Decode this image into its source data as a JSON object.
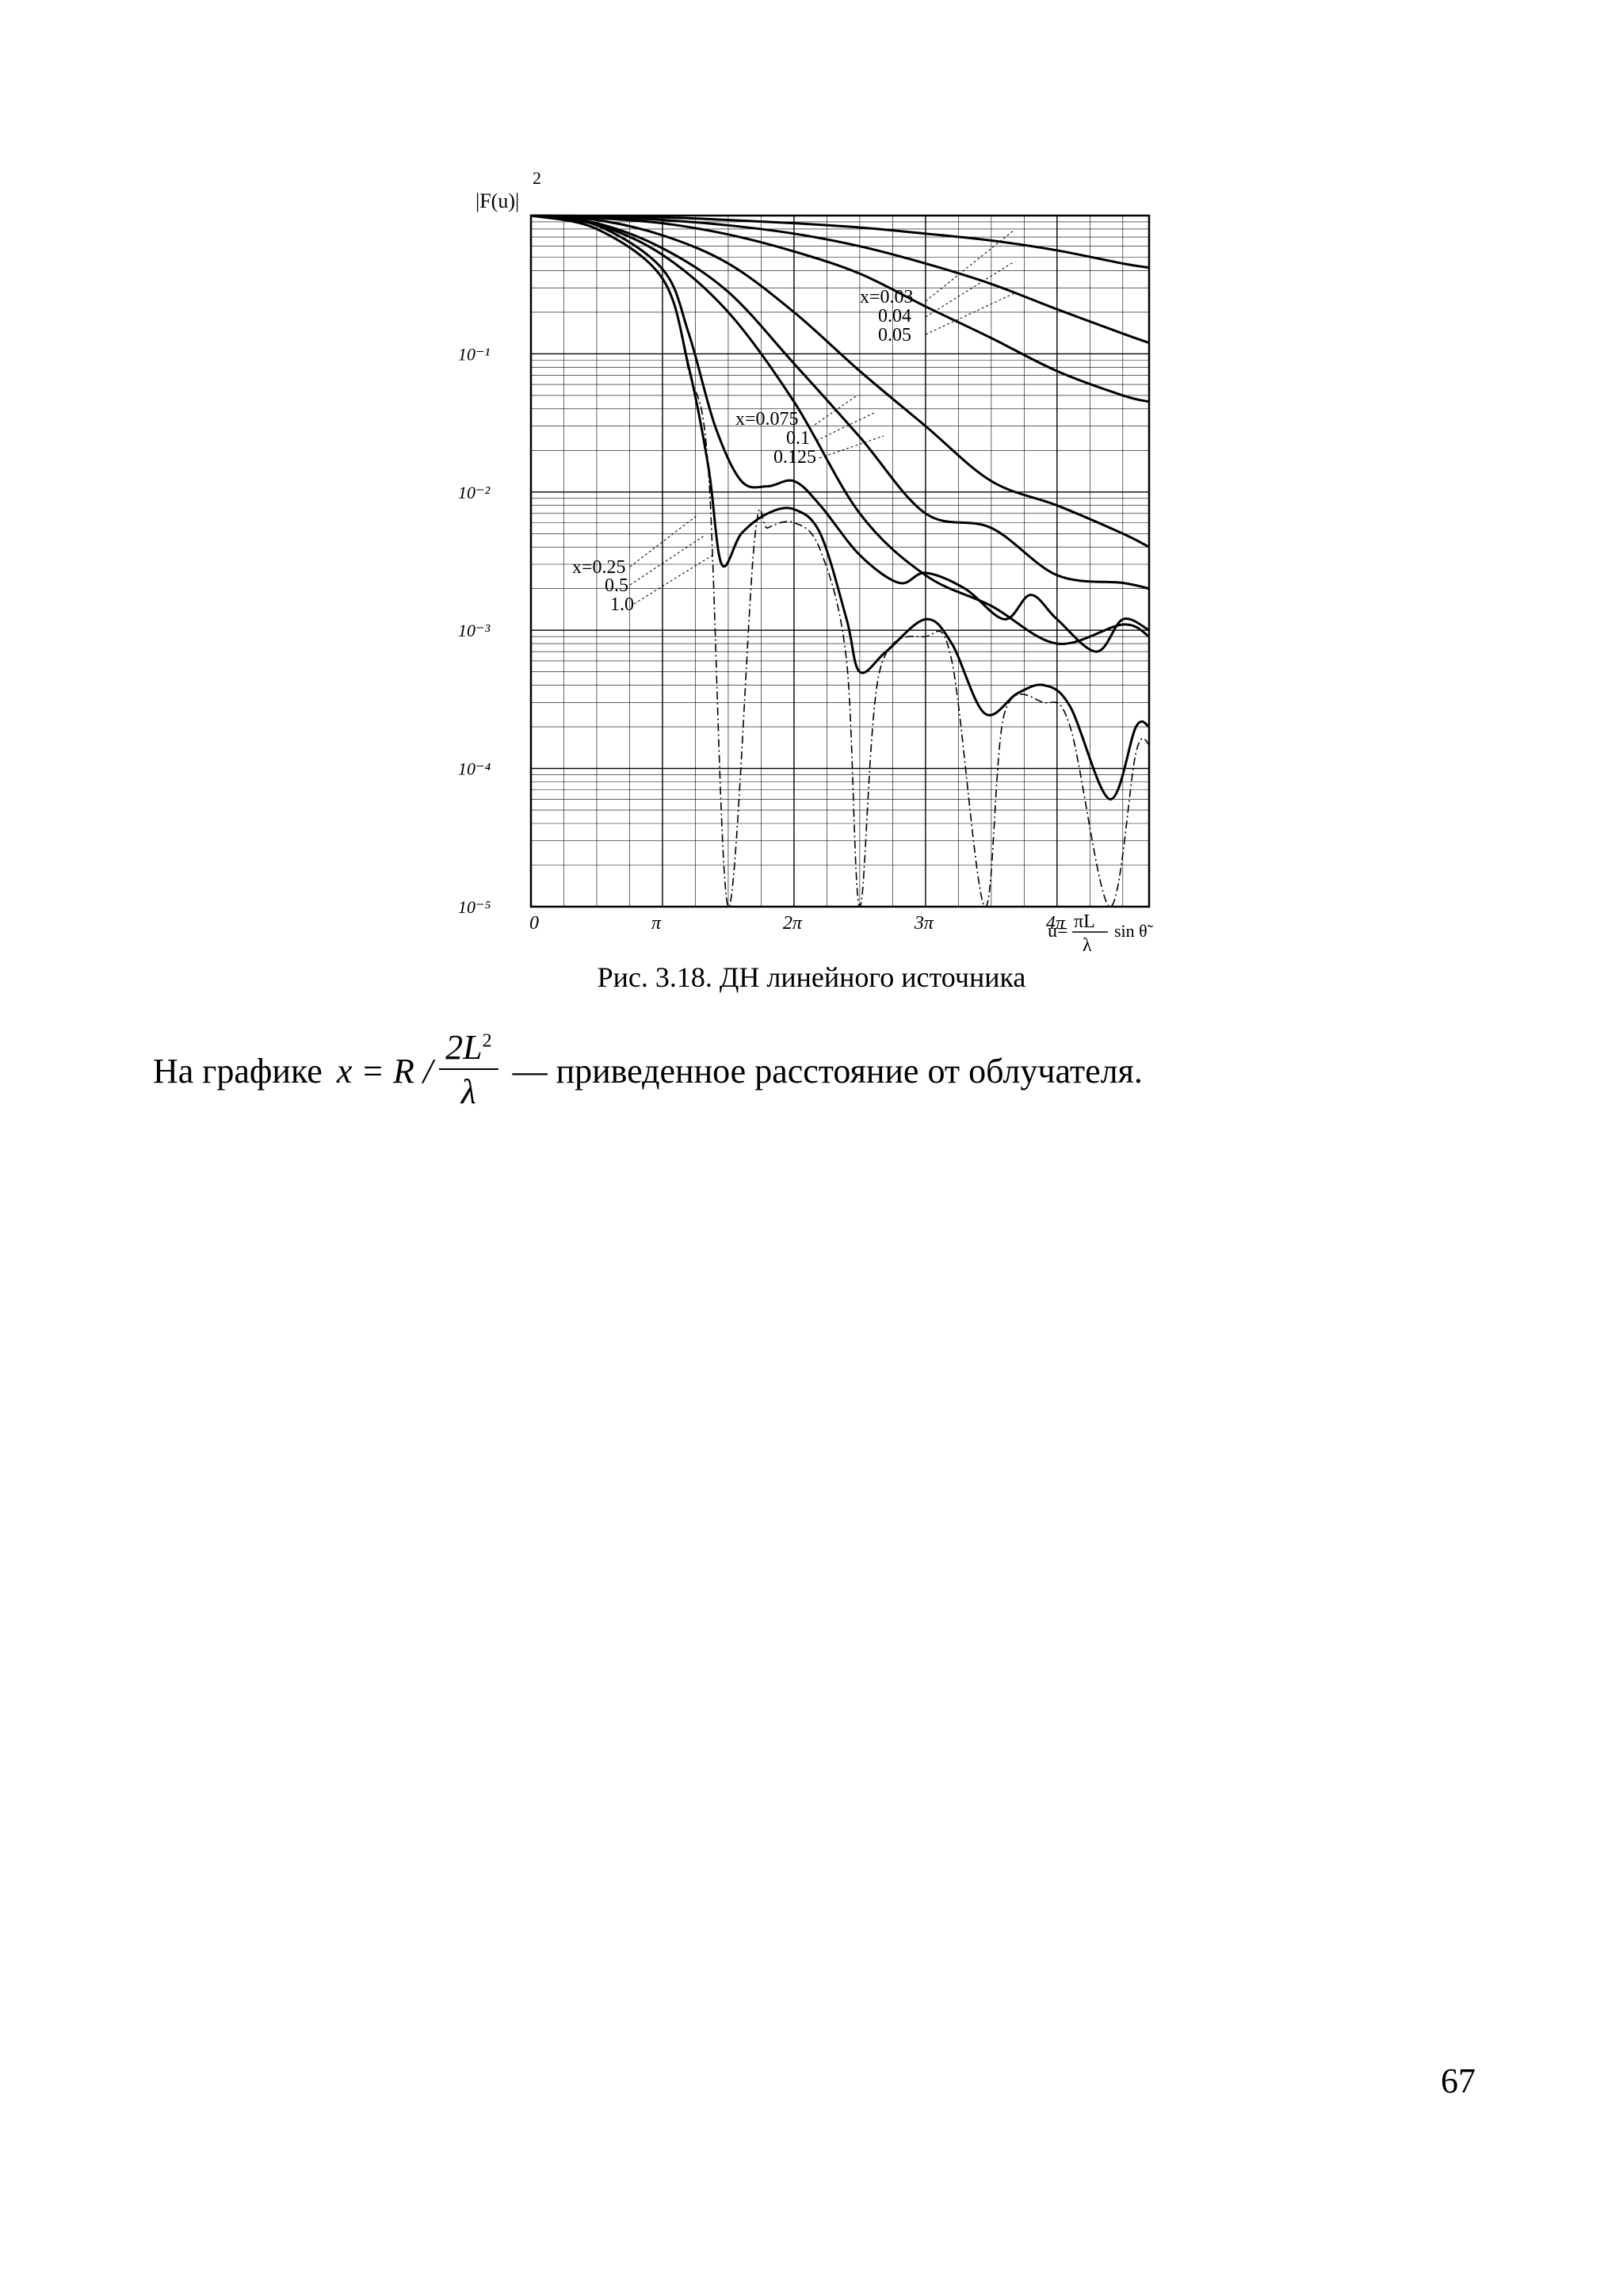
{
  "figure": {
    "y_axis_label": "|F(u)|",
    "y_axis_label_power": "2",
    "x_axis_label_prefix": "u=",
    "x_axis_label_num": "πL",
    "x_axis_label_den": "λ",
    "x_axis_label_suffix": "sin θ̃",
    "x_ticks": [
      "0",
      "π",
      "2π",
      "3π",
      "4π"
    ],
    "y_ticks": [
      "10⁻¹",
      "10⁻²",
      "10⁻³",
      "10⁻⁴",
      "10⁻⁵"
    ],
    "curve_labels_far": [
      "x=0.03",
      "0.04",
      "0.05"
    ],
    "curve_labels_mid": [
      "x=0.075",
      "0.1",
      "0.125"
    ],
    "curve_labels_near": [
      "x=0.25",
      "0.5",
      "1.0"
    ]
  },
  "chart_data": {
    "type": "line",
    "x_unit": "π",
    "xlim": [
      0,
      4.7
    ],
    "ylim_log10": [
      -5,
      0
    ],
    "y_scale": "log",
    "grid": true,
    "series": [
      {
        "name": "x=0.03",
        "x": [
          0,
          0.5,
          1,
          1.5,
          2,
          2.5,
          3,
          3.5,
          4,
          4.5,
          4.7
        ],
        "y": [
          1,
          0.99,
          0.97,
          0.93,
          0.88,
          0.82,
          0.74,
          0.66,
          0.56,
          0.45,
          0.42
        ]
      },
      {
        "name": "0.04",
        "x": [
          0,
          0.5,
          1,
          1.5,
          2,
          2.5,
          3,
          3.5,
          4,
          4.5,
          4.7
        ],
        "y": [
          1,
          0.98,
          0.93,
          0.85,
          0.74,
          0.6,
          0.45,
          0.32,
          0.21,
          0.14,
          0.12
        ]
      },
      {
        "name": "0.05",
        "x": [
          0,
          0.5,
          1,
          1.5,
          2,
          2.5,
          3,
          3.5,
          4,
          4.5,
          4.7
        ],
        "y": [
          1,
          0.96,
          0.88,
          0.73,
          0.55,
          0.38,
          0.22,
          0.13,
          0.075,
          0.05,
          0.045
        ]
      },
      {
        "name": "x=0.075",
        "x": [
          0,
          0.5,
          1,
          1.5,
          2,
          2.5,
          3,
          3.5,
          4,
          4.5,
          4.7
        ],
        "y": [
          1,
          0.93,
          0.72,
          0.45,
          0.2,
          0.075,
          0.03,
          0.012,
          0.008,
          0.005,
          0.004
        ]
      },
      {
        "name": "0.1",
        "x": [
          0,
          0.5,
          1,
          1.5,
          2,
          2.5,
          3,
          3.5,
          4,
          4.5,
          4.7
        ],
        "y": [
          1,
          0.88,
          0.58,
          0.28,
          0.085,
          0.025,
          0.007,
          0.0055,
          0.0025,
          0.0022,
          0.002
        ]
      },
      {
        "name": "0.125",
        "x": [
          0,
          0.5,
          1,
          1.5,
          2,
          2.5,
          3,
          3.5,
          4,
          4.5,
          4.7
        ],
        "y": [
          1,
          0.86,
          0.52,
          0.2,
          0.045,
          0.007,
          0.0025,
          0.0015,
          0.0008,
          0.0011,
          0.0009
        ]
      },
      {
        "name": "x=0.25",
        "x": [
          0,
          0.5,
          1,
          1.2,
          1.4,
          1.6,
          1.8,
          2.0,
          2.2,
          2.5,
          2.8,
          3.0,
          3.3,
          3.6,
          3.8,
          4.0,
          4.3,
          4.5,
          4.7
        ],
        "y": [
          1,
          0.85,
          0.41,
          0.14,
          0.03,
          0.012,
          0.011,
          0.012,
          0.008,
          0.0035,
          0.0022,
          0.0026,
          0.002,
          0.0012,
          0.0018,
          0.0012,
          0.0007,
          0.0012,
          0.001
        ]
      },
      {
        "name": "0.5",
        "x": [
          0,
          0.5,
          1,
          1.2,
          1.35,
          1.45,
          1.6,
          1.8,
          2.0,
          2.2,
          2.4,
          2.5,
          2.7,
          3.0,
          3.2,
          3.45,
          3.7,
          3.9,
          4.1,
          4.4,
          4.6,
          4.7
        ],
        "y": [
          1,
          0.8,
          0.35,
          0.08,
          0.015,
          0.003,
          0.005,
          0.007,
          0.0075,
          0.005,
          0.0012,
          0.0005,
          0.0007,
          0.0012,
          0.0008,
          0.00025,
          0.00035,
          0.0004,
          0.00028,
          6e-05,
          0.0002,
          0.0002
        ]
      },
      {
        "name": "1.0",
        "x": [
          0,
          0.5,
          1,
          1.2,
          1.35,
          1.5,
          1.7,
          1.8,
          2.0,
          2.2,
          2.4,
          2.5,
          2.65,
          3.0,
          3.2,
          3.45,
          3.6,
          3.9,
          4.1,
          4.4,
          4.6,
          4.7
        ],
        "y": [
          1,
          0.8,
          0.35,
          0.075,
          0.014,
          1e-05,
          0.0045,
          0.0055,
          0.006,
          0.0038,
          0.0006,
          1e-05,
          0.0005,
          0.0009,
          0.0006,
          1e-05,
          0.00025,
          0.0003,
          0.0002,
          1e-05,
          0.00013,
          0.00015
        ]
      }
    ]
  },
  "caption": "Рис. 3.18. ДН линейного источника",
  "body": {
    "prefix": "На графике",
    "math_lhs": "x = R /",
    "frac_num": "2L",
    "frac_num_sup": "2",
    "frac_den": "λ",
    "suffix": "— приведенное расстояние от облучателя."
  },
  "page_number": "67"
}
